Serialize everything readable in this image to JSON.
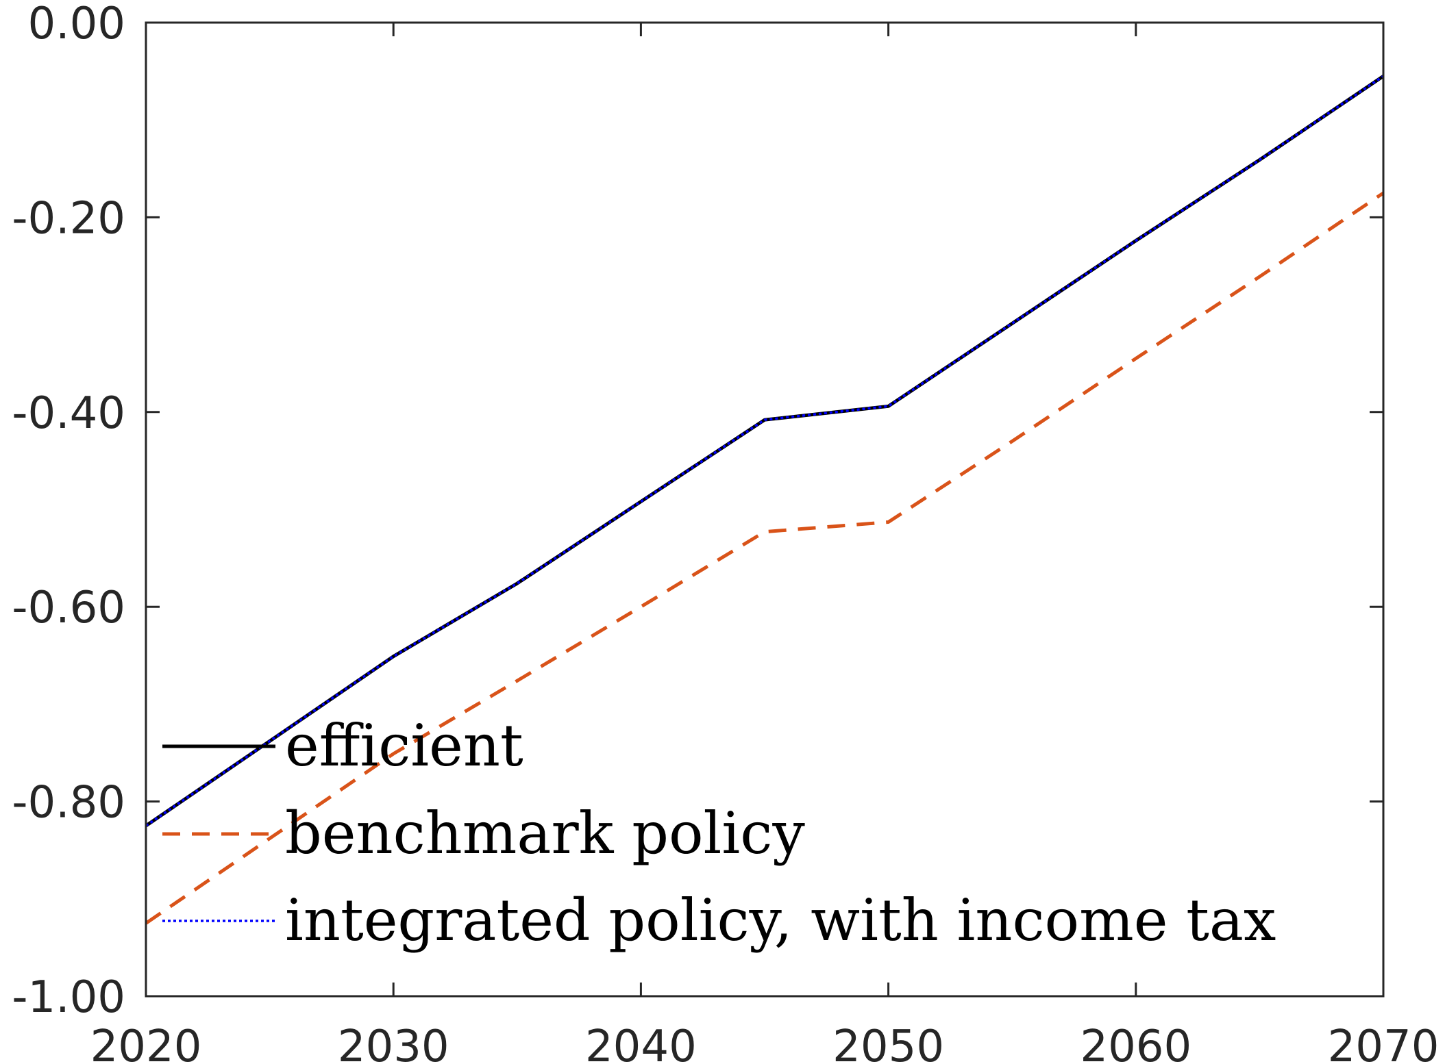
{
  "chart_data": {
    "type": "line",
    "title": "",
    "xlabel": "",
    "ylabel": "",
    "xlim": [
      2020,
      2070
    ],
    "ylim": [
      -1.0,
      0.0
    ],
    "x_ticks": [
      "2020",
      "2030",
      "2040",
      "2050",
      "2060",
      "2070"
    ],
    "y_ticks": [
      "0.00",
      "-0.20",
      "-0.40",
      "-0.60",
      "-0.80",
      "-1.00"
    ],
    "x": [
      2020,
      2025,
      2030,
      2035,
      2040,
      2045,
      2050,
      2055,
      2060,
      2065,
      2070
    ],
    "series": [
      {
        "name": "efficient",
        "style": "solid",
        "color": "#000000",
        "values": [
          -0.825,
          -0.738,
          -0.651,
          -0.576,
          -0.492,
          -0.408,
          -0.394,
          -0.309,
          -0.224,
          -0.141,
          -0.055
        ]
      },
      {
        "name": "benchmark policy",
        "style": "dashed",
        "color": "#D95319",
        "values": [
          -0.925,
          -0.838,
          -0.751,
          -0.676,
          -0.6,
          -0.523,
          -0.513,
          -0.43,
          -0.345,
          -0.261,
          -0.175
        ]
      },
      {
        "name": "integrated policy, with income tax",
        "style": "dotted",
        "color": "#0000FF",
        "values": [
          -0.825,
          -0.738,
          -0.651,
          -0.576,
          -0.492,
          -0.408,
          -0.394,
          -0.309,
          -0.224,
          -0.141,
          -0.055
        ]
      }
    ],
    "grid": false,
    "legend_position": "bottom-left"
  }
}
